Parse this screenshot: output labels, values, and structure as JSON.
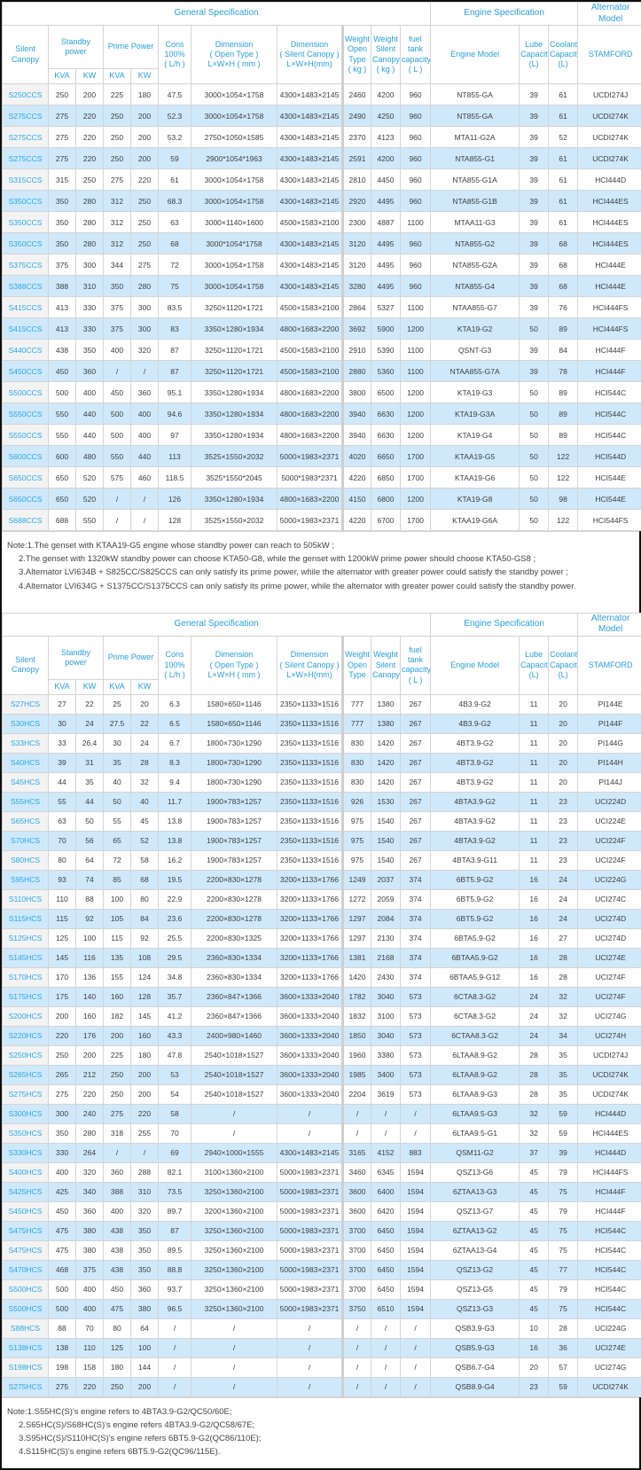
{
  "colors": {
    "accent_blue": "#2b9fd9",
    "row_stripe_blue": "#cfe9fb",
    "model_cell_gray": "#f3f3f3",
    "grid_gray": "#d4d4d4",
    "frame_black": "#0f0f0f"
  },
  "table1": {
    "header": {
      "general": "General Specification",
      "engine": "Engine Specification",
      "alternator": "Alternator Model",
      "model": "Silent Canopy",
      "standby": "Standby power",
      "prime": "Prime Power",
      "kva": "KVA",
      "kw": "KW",
      "cons": "Cons\n100%\n( L/h )",
      "dim_open": "Dimension\n( Open Type )\nL×W×H ( mm )",
      "dim_silent": "Dimension\n( Silent Canopy )\nL×W×H(mm)",
      "weight_open": "Weight\nOpen\nType\n( kg )",
      "weight_silent": "Weight\nSilent\nCanopy\n( kg )",
      "fuel": "fuel tank\ncapacity\n( L )",
      "engine_model": "Engine Model",
      "lube": "Lube\nCapacity\n(L)",
      "coolant": "Coolant\nCapacity\n(L)",
      "stamford": "STAMFORD"
    },
    "rows": [
      [
        "S250CCS",
        "250",
        "200",
        "225",
        "180",
        "47.5",
        "3000×1054×1758",
        "4300×1483×2145",
        "2460",
        "4200",
        "960",
        "NT855-GA",
        "39",
        "61",
        "UCDI274J"
      ],
      [
        "S275CCS",
        "275",
        "220",
        "250",
        "200",
        "52.3",
        "3000×1054×1758",
        "4300×1483×2145",
        "2490",
        "4250",
        "960",
        "NT855-GA",
        "39",
        "61",
        "UCDI274K"
      ],
      [
        "S275CCS",
        "275",
        "220",
        "250",
        "200",
        "53.2",
        "2750×1050×1585",
        "4300×1483×2145",
        "2370",
        "4123",
        "960",
        "MTA11-G2A",
        "39",
        "52",
        "UCDI274K"
      ],
      [
        "S275CCS",
        "275",
        "220",
        "250",
        "200",
        "59",
        "2900*1054*1963",
        "4300×1483×2145",
        "2591",
        "4200",
        "960",
        "NTA855-G1",
        "39",
        "61",
        "UCDI274K"
      ],
      [
        "S315CCS",
        "315",
        "250",
        "275",
        "220",
        "61",
        "3000×1054×1758",
        "4300×1483×2145",
        "2810",
        "4450",
        "960",
        "NTA855-G1A",
        "39",
        "61",
        "HCI444D"
      ],
      [
        "S350CCS",
        "350",
        "280",
        "312",
        "250",
        "68.3",
        "3000×1054×1758",
        "4300×1483×2145",
        "2920",
        "4495",
        "960",
        "NTA855-G1B",
        "39",
        "61",
        "HCI444ES"
      ],
      [
        "S350CCS",
        "350",
        "280",
        "312",
        "250",
        "63",
        "3000×1140×1600",
        "4500×1583×2100",
        "2300",
        "4887",
        "1100",
        "MTAA11-G3",
        "39",
        "61",
        "HCI444ES"
      ],
      [
        "S350CCS",
        "350",
        "280",
        "312",
        "250",
        "68",
        "3000*1054*1758",
        "4300×1483×2145",
        "3120",
        "4495",
        "960",
        "NTA855-G2",
        "39",
        "68",
        "HCI444ES"
      ],
      [
        "S375CCS",
        "375",
        "300",
        "344",
        "275",
        "72",
        "3000×1054×1758",
        "4300×1483×2145",
        "3120",
        "4495",
        "960",
        "NTA855-G2A",
        "39",
        "68",
        "HCI444E"
      ],
      [
        "S388CCS",
        "388",
        "310",
        "350",
        "280",
        "75",
        "3000×1054×1758",
        "4300×1483×2145",
        "3280",
        "4495",
        "960",
        "NTA855-G4",
        "39",
        "68",
        "HCI444E"
      ],
      [
        "S415CCS",
        "413",
        "330",
        "375",
        "300",
        "83.5",
        "3250×1120×1721",
        "4500×1583×2100",
        "2864",
        "5327",
        "1100",
        "NTAA855-G7",
        "39",
        "76",
        "HCI444FS"
      ],
      [
        "S415CCS",
        "413",
        "330",
        "375",
        "300",
        "83",
        "3350×1280×1934",
        "4800×1683×2200",
        "3692",
        "5900",
        "1200",
        "KTA19-G2",
        "50",
        "89",
        "HCI444FS"
      ],
      [
        "S440CCS",
        "438",
        "350",
        "400",
        "320",
        "87",
        "3250×1120×1721",
        "4500×1583×2100",
        "2910",
        "5390",
        "1100",
        "QSNT-G3",
        "39",
        "84",
        "HCI444F"
      ],
      [
        "S450CCS",
        "450",
        "360",
        "/",
        "/",
        "87",
        "3250×1120×1721",
        "4500×1583×2100",
        "2880",
        "5360",
        "1100",
        "NTAA855-G7A",
        "39",
        "78",
        "HCI444F"
      ],
      [
        "S500CCS",
        "500",
        "400",
        "450",
        "360",
        "95.1",
        "3350×1280×1934",
        "4800×1683×2200",
        "3800",
        "6500",
        "1200",
        "KTA19-G3",
        "50",
        "89",
        "HCI544C"
      ],
      [
        "S550CCS",
        "550",
        "440",
        "500",
        "400",
        "94.6",
        "3350×1280×1934",
        "4800×1683×2200",
        "3940",
        "6630",
        "1200",
        "KTA19-G3A",
        "50",
        "89",
        "HCI544C"
      ],
      [
        "S550CCS",
        "550",
        "440",
        "500",
        "400",
        "97",
        "3350×1280×1934",
        "4800×1683×2200",
        "3940",
        "6630",
        "1200",
        "KTA19-G4",
        "50",
        "89",
        "HCI544C"
      ],
      [
        "S600CCS",
        "600",
        "480",
        "550",
        "440",
        "113",
        "3525×1550×2032",
        "5000×1983×2371",
        "4020",
        "6650",
        "1700",
        "KTAA19-G5",
        "50",
        "122",
        "HCI544D"
      ],
      [
        "S650CCS",
        "650",
        "520",
        "575",
        "460",
        "118.5",
        "3525*1550*2045",
        "5000*1983*2371",
        "4220",
        "6850",
        "1700",
        "KTAA19-G6",
        "50",
        "122",
        "HCI544E"
      ],
      [
        "S650CCS",
        "650",
        "520",
        "/",
        "/",
        "126",
        "3350×1280×1934",
        "4800×1683×2200",
        "4150",
        "6800",
        "1200",
        "KTA19-G8",
        "50",
        "98",
        "HCI544E"
      ],
      [
        "S688CCS",
        "688",
        "550",
        "/",
        "/",
        "128",
        "3525×1550×2032",
        "5000×1983×2371",
        "4220",
        "6700",
        "1700",
        "KTAA19-G6A",
        "50",
        "122",
        "HCI544FS"
      ]
    ],
    "notes": [
      "Note:1.The genset with KTAA19-G5 engine whose standby power can reach to 505kW ;",
      "2.The genset with 1320kW standby power can choose KTA50-G8, while the genset with 1200kW prime power should choose KTA50-GS8 ;",
      "3.Alternator LVI634B + S825CC/S825CCS can only satisfy its prime power, while the alternator with greater power could satisfy the standby power ;",
      "4.Alternator LVI634G + S1375CC/S1375CCS can only satisfy its prime power, while the alternator with greater power could satisfy the standby power."
    ]
  },
  "table2": {
    "header": {
      "general": "General Specification",
      "engine": "Engine Specification",
      "alternator": "Alternator Model",
      "model": "Silent Canopy",
      "standby": "Standby power",
      "prime": "Prime Power",
      "kva": "KVA",
      "kw": "KW",
      "cons": "Cons\n100%\n( L/h )",
      "dim_open": "Dimension\n( Open Type )\nL×W×H ( mm )",
      "dim_silent": "Dimension\n( Silent Canopy )\nL×W×H(mm)",
      "weight_open": "Weight\nOpen\nType",
      "weight_silent": "Weight\nSilent\nCanopy",
      "fuel": "fuel tank\ncapacity\n( L )",
      "engine_model": "Engine Model",
      "lube": "Lube\nCapacity\n(L)",
      "coolant": "Coolant\nCapacity\n(L)",
      "stamford": "STAMFORD"
    },
    "rows": [
      [
        "S27HCS",
        "27",
        "22",
        "25",
        "20",
        "6.3",
        "1580×650×1146",
        "2350×1133×1516",
        "777",
        "1380",
        "267",
        "4B3.9-G2",
        "11",
        "20",
        "PI144E"
      ],
      [
        "S30HCS",
        "30",
        "24",
        "27.5",
        "22",
        "6.5",
        "1580×650×1146",
        "2350×1133×1516",
        "777",
        "1380",
        "267",
        "4B3.9-G2",
        "11",
        "20",
        "PI144F"
      ],
      [
        "S33HCS",
        "33",
        "26.4",
        "30",
        "24",
        "6.7",
        "1800×730×1290",
        "2350×1133×1516",
        "830",
        "1420",
        "267",
        "4BT3.9-G2",
        "11",
        "20",
        "PI144G"
      ],
      [
        "S40HCS",
        "39",
        "31",
        "35",
        "28",
        "8.3",
        "1800×730×1290",
        "2350×1133×1516",
        "830",
        "1420",
        "267",
        "4BT3.9-G2",
        "11",
        "20",
        "PI144H"
      ],
      [
        "S45HCS",
        "44",
        "35",
        "40",
        "32",
        "9.4",
        "1800×730×1290",
        "2350×1133×1516",
        "830",
        "1420",
        "267",
        "4BT3.9-G2",
        "11",
        "20",
        "PI144J"
      ],
      [
        "S55HCS",
        "55",
        "44",
        "50",
        "40",
        "11.7",
        "1900×783×1257",
        "2350×1133×1516",
        "926",
        "1530",
        "267",
        "4BTA3.9-G2",
        "11",
        "23",
        "UCI224D"
      ],
      [
        "S65HCS",
        "63",
        "50",
        "55",
        "45",
        "13.8",
        "1900×783×1257",
        "2350×1133×1516",
        "975",
        "1540",
        "267",
        "4BTA3.9-G2",
        "11",
        "23",
        "UCI224E"
      ],
      [
        "S70HCS",
        "70",
        "56",
        "65",
        "52",
        "13.8",
        "1900×783×1257",
        "2350×1133×1516",
        "975",
        "1540",
        "267",
        "4BTA3.9-G2",
        "11",
        "23",
        "UCI224F"
      ],
      [
        "S80HCS",
        "80",
        "64",
        "72",
        "58",
        "16.2",
        "1900×783×1257",
        "2350×1133×1516",
        "975",
        "1540",
        "267",
        "4BTA3.9-G11",
        "11",
        "23",
        "UCI224F"
      ],
      [
        "S95HCS",
        "93",
        "74",
        "85",
        "68",
        "19.5",
        "2200×830×1278",
        "3200×1133×1766",
        "1249",
        "2037",
        "374",
        "6BT5.9-G2",
        "16",
        "24",
        "UCI224G"
      ],
      [
        "S110HCS",
        "110",
        "88",
        "100",
        "80",
        "22.9",
        "2200×830×1278",
        "3200×1133×1766",
        "1272",
        "2059",
        "374",
        "6BT5.9-G2",
        "16",
        "24",
        "UCI274C"
      ],
      [
        "S115HCS",
        "115",
        "92",
        "105",
        "84",
        "23.6",
        "2200×830×1278",
        "3200×1133×1766",
        "1297",
        "2084",
        "374",
        "6BT5.9-G2",
        "16",
        "24",
        "UCI274D"
      ],
      [
        "S125HCS",
        "125",
        "100",
        "115",
        "92",
        "25.5",
        "2200×830×1325",
        "3200×1133×1766",
        "1297",
        "2130",
        "374",
        "6BTA5.9-G2",
        "16",
        "27",
        "UCI274D"
      ],
      [
        "S145HCS",
        "145",
        "116",
        "135",
        "108",
        "29.5",
        "2360×830×1334",
        "3200×1133×1766",
        "1381",
        "2168",
        "374",
        "6BTAA5.9-G2",
        "16",
        "28",
        "UCI274E"
      ],
      [
        "S170HCS",
        "170",
        "136",
        "155",
        "124",
        "34.8",
        "2360×830×1334",
        "3200×1133×1766",
        "1420",
        "2430",
        "374",
        "6BTAA5.9-G12",
        "16",
        "28",
        "UCI274F"
      ],
      [
        "S175HCS",
        "175",
        "140",
        "160",
        "128",
        "35.7",
        "2360×847×1366",
        "3600×1333×2040",
        "1782",
        "3040",
        "573",
        "6CTA8.3-G2",
        "24",
        "32",
        "UCI274F"
      ],
      [
        "S200HCS",
        "200",
        "160",
        "182",
        "145",
        "41.2",
        "2360×847×1366",
        "3600×1333×2040",
        "1832",
        "3100",
        "573",
        "6CTA8.3-G2",
        "24",
        "32",
        "UCI274G"
      ],
      [
        "S220HCS",
        "220",
        "176",
        "200",
        "160",
        "43.3",
        "2400×980×1460",
        "3600×1333×2040",
        "1850",
        "3040",
        "573",
        "6CTAA8.3-G2",
        "24",
        "34",
        "UCI274H"
      ],
      [
        "S250HCS",
        "250",
        "200",
        "225",
        "180",
        "47.8",
        "2540×1018×1527",
        "3600×1333×2040",
        "1960",
        "3380",
        "573",
        "6LTAA8.9-G2",
        "28",
        "35",
        "UCDI274J"
      ],
      [
        "S265HCS",
        "265",
        "212",
        "250",
        "200",
        "53",
        "2540×1018×1527",
        "3600×1333×2040",
        "1985",
        "3400",
        "573",
        "6LTAA8.9-G2",
        "28",
        "35",
        "UCDI274K"
      ],
      [
        "S275HCS",
        "275",
        "220",
        "250",
        "200",
        "54",
        "2540×1018×1527",
        "3600×1333×2040",
        "2204",
        "3619",
        "573",
        "6LTAA8.9-G3",
        "28",
        "35",
        "UCDI274K"
      ],
      [
        "S300HCS",
        "300",
        "240",
        "275",
        "220",
        "58",
        "/",
        "/",
        "/",
        "/",
        "/",
        "6LTAA9.5-G3",
        "32",
        "59",
        "HCI444D"
      ],
      [
        "S350HCS",
        "350",
        "280",
        "318",
        "255",
        "70",
        "/",
        "/",
        "/",
        "/",
        "/",
        "6LTAA9.5-G1",
        "32",
        "59",
        "HCI444ES"
      ],
      [
        "S330HCS",
        "330",
        "264",
        "/",
        "/",
        "69",
        "2940×1000×1555",
        "4300×1483×2145",
        "3165",
        "4152",
        "883",
        "QSM11-G2",
        "37",
        "39",
        "HCI444D"
      ],
      [
        "S400HCS",
        "400",
        "320",
        "360",
        "288",
        "82.1",
        "3100×1360×2100",
        "5000×1983×2371",
        "3460",
        "6345",
        "1594",
        "QSZ13-G6",
        "45",
        "79",
        "HCI444FS"
      ],
      [
        "S425HCS",
        "425",
        "340",
        "388",
        "310",
        "73.5",
        "3250×1360×2100",
        "5000×1983×2371",
        "3600",
        "6400",
        "1594",
        "6ZTAA13-G3",
        "45",
        "75",
        "HCI444F"
      ],
      [
        "S450HCS",
        "450",
        "360",
        "400",
        "320",
        "89.7",
        "3200×1360×2100",
        "5000×1983×2371",
        "3600",
        "6420",
        "1594",
        "QSZ13-G7",
        "45",
        "79",
        "HCI444F"
      ],
      [
        "S475HCS",
        "475",
        "380",
        "438",
        "350",
        "87",
        "3250×1360×2100",
        "5000×1983×2371",
        "3700",
        "6450",
        "1594",
        "6ZTAA13-G2",
        "45",
        "75",
        "HCI544C"
      ],
      [
        "S475HCS",
        "475",
        "380",
        "438",
        "350",
        "89.5",
        "3250×1360×2100",
        "5000×1983×2371",
        "3700",
        "6450",
        "1594",
        "6ZTAA13-G4",
        "45",
        "75",
        "HCI544C"
      ],
      [
        "S470HCS",
        "468",
        "375",
        "438",
        "350",
        "88.8",
        "3250×1360×2100",
        "5000×1983×2371",
        "3700",
        "6450",
        "1594",
        "QSZ13-G2",
        "45",
        "77",
        "HCI544C"
      ],
      [
        "S500HCS",
        "500",
        "400",
        "450",
        "360",
        "93.7",
        "3250×1360×2100",
        "5000×1983×2371",
        "3700",
        "6450",
        "1594",
        "QSZ13-G5",
        "45",
        "79",
        "HCI544C"
      ],
      [
        "S500HCS",
        "500",
        "400",
        "475",
        "380",
        "96.5",
        "3250×1360×2100",
        "5000×1983×2371",
        "3750",
        "6510",
        "1594",
        "QSZ13-G3",
        "45",
        "75",
        "HCI544C"
      ],
      [
        "S88HCS",
        "88",
        "70",
        "80",
        "64",
        "/",
        "/",
        "/",
        "/",
        "/",
        "/",
        "QSB3.9-G3",
        "10",
        "28",
        "UCI224G"
      ],
      [
        "S138HCS",
        "138",
        "110",
        "125",
        "100",
        "/",
        "/",
        "/",
        "/",
        "/",
        "/",
        "QSB5.9-G3",
        "16",
        "36",
        "UCI274E"
      ],
      [
        "S198HCS",
        "198",
        "158",
        "180",
        "144",
        "/",
        "/",
        "/",
        "/",
        "/",
        "/",
        "QSB6.7-G4",
        "20",
        "57",
        "UCI274G"
      ],
      [
        "S275HCS",
        "275",
        "220",
        "250",
        "200",
        "/",
        "/",
        "/",
        "/",
        "/",
        "/",
        "QSB8.9-G4",
        "23",
        "59",
        "UCDI274K"
      ]
    ],
    "notes": [
      "Note:1.S55HC(S)'s engine refers to 4BTA3.9-G2/QC50/60E;",
      "2.S65HC(S)/S68HC(S)'s engine refers 4BTA3.9-G2/QC58/67E;",
      "3.S95HC(S)/S110HC(S)'s engine refers 6BT5.9-G2(QC86/110E);",
      "4.S115HC(S)'s engine refers 6BT5.9-G2(QC96/115E)."
    ]
  }
}
